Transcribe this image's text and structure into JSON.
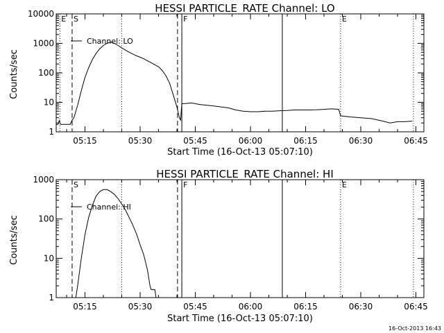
{
  "chart_data": [
    {
      "type": "line",
      "title": "HESSI PARTICLE_RATE Channel: LO",
      "xlabel": "Start Time (16-Oct-13 05:07:10)",
      "ylabel": "Counts/sec",
      "y_scale": "log",
      "ylim": [
        1,
        10000
      ],
      "xlim": [
        "05:07:10",
        "06:47:10"
      ],
      "x_ticks": [
        "05:15",
        "05:30",
        "05:45",
        "06:00",
        "06:15",
        "06:30",
        "06:45"
      ],
      "y_ticks": [
        "1",
        "10",
        "100",
        "1000",
        "10000"
      ],
      "legend": {
        "entry": "Channel: LO",
        "placement": "top-left"
      },
      "markers": [
        {
          "time": "05:08:10",
          "label": "E",
          "style": "dotted"
        },
        {
          "time": "05:11:30",
          "label": "S",
          "style": "dashed"
        },
        {
          "time": "05:25:00",
          "label": "",
          "style": "dotted"
        },
        {
          "time": "05:40:10",
          "label": "",
          "style": "dashed"
        },
        {
          "time": "05:41:20",
          "label": "F",
          "style": "solid"
        },
        {
          "time": "06:08:40",
          "label": "",
          "style": "solid"
        },
        {
          "time": "06:24:30",
          "label": "E",
          "style": "dotted"
        },
        {
          "time": "06:44:20",
          "label": "",
          "style": "dotted"
        }
      ],
      "series": [
        {
          "name": "Channel: LO",
          "points": [
            [
              "05:07:10",
              1.8
            ],
            [
              "05:07:40",
              1.8
            ],
            [
              "05:08:00",
              2.4
            ],
            [
              "05:08:20",
              1.8
            ],
            [
              "05:10:00",
              1.8
            ],
            [
              "05:11:00",
              1.8
            ],
            [
              "05:11:30",
              2.5
            ],
            [
              "05:12:00",
              3.0
            ],
            [
              "05:13:00",
              8
            ],
            [
              "05:14:00",
              25
            ],
            [
              "05:15:00",
              70
            ],
            [
              "05:16:00",
              150
            ],
            [
              "05:17:00",
              280
            ],
            [
              "05:18:00",
              450
            ],
            [
              "05:19:00",
              650
            ],
            [
              "05:20:00",
              850
            ],
            [
              "05:21:00",
              1000
            ],
            [
              "05:22:00",
              1100
            ],
            [
              "05:23:00",
              1000
            ],
            [
              "05:24:00",
              850
            ],
            [
              "05:25:00",
              700
            ],
            [
              "05:27:00",
              500
            ],
            [
              "05:29:00",
              380
            ],
            [
              "05:31:00",
              300
            ],
            [
              "05:33:00",
              220
            ],
            [
              "05:35:00",
              160
            ],
            [
              "05:36:00",
              120
            ],
            [
              "05:37:00",
              80
            ],
            [
              "05:38:00",
              45
            ],
            [
              "05:39:00",
              18
            ],
            [
              "05:40:00",
              7
            ],
            [
              "05:40:40",
              3
            ],
            [
              "05:41:00",
              2.5
            ],
            [
              "05:41:20",
              9
            ],
            [
              "05:42:00",
              9
            ],
            [
              "05:44:00",
              9.5
            ],
            [
              "05:46:00",
              8.5
            ],
            [
              "05:48:00",
              8
            ],
            [
              "05:50:00",
              7.5
            ],
            [
              "05:52:00",
              7
            ],
            [
              "05:54:00",
              6.5
            ],
            [
              "05:56:00",
              5.5
            ],
            [
              "05:58:00",
              5
            ],
            [
              "06:00:00",
              4.8
            ],
            [
              "06:02:00",
              4.8
            ],
            [
              "06:04:00",
              5
            ],
            [
              "06:06:00",
              5
            ],
            [
              "06:08:00",
              5.2
            ],
            [
              "06:10:00",
              5.3
            ],
            [
              "06:12:00",
              5.5
            ],
            [
              "06:14:00",
              5.5
            ],
            [
              "06:16:00",
              5.5
            ],
            [
              "06:18:00",
              5.6
            ],
            [
              "06:20:00",
              5.8
            ],
            [
              "06:22:00",
              6
            ],
            [
              "06:24:00",
              5.8
            ],
            [
              "06:24:30",
              3.5
            ],
            [
              "06:27:00",
              3.2
            ],
            [
              "06:30:00",
              3.0
            ],
            [
              "06:33:00",
              2.8
            ],
            [
              "06:36:00",
              2.3
            ],
            [
              "06:38:00",
              2.0
            ],
            [
              "06:40:00",
              2.2
            ],
            [
              "06:42:00",
              2.2
            ],
            [
              "06:44:00",
              2.3
            ]
          ]
        }
      ]
    },
    {
      "type": "line",
      "title": "HESSI PARTICLE_RATE Channel: HI",
      "xlabel": "Start Time (16-Oct-13 05:07:10)",
      "ylabel": "Counts/sec",
      "y_scale": "log",
      "ylim": [
        1,
        1000
      ],
      "xlim": [
        "05:07:10",
        "06:47:10"
      ],
      "x_ticks": [
        "05:15",
        "05:30",
        "05:45",
        "06:00",
        "06:15",
        "06:30",
        "06:45"
      ],
      "y_ticks": [
        "1",
        "10",
        "100",
        "1000"
      ],
      "legend": {
        "entry": "Channel: HI",
        "placement": "top-left"
      },
      "markers": [
        {
          "time": "05:11:30",
          "label": "S",
          "style": "dashed"
        },
        {
          "time": "05:25:00",
          "label": "",
          "style": "dotted"
        },
        {
          "time": "05:40:10",
          "label": "",
          "style": "dashed"
        },
        {
          "time": "05:41:20",
          "label": "F",
          "style": "solid"
        },
        {
          "time": "06:08:40",
          "label": "",
          "style": "solid"
        },
        {
          "time": "06:24:30",
          "label": "E",
          "style": "dotted"
        },
        {
          "time": "06:44:20",
          "label": "",
          "style": "dotted"
        }
      ],
      "series": [
        {
          "name": "Channel: HI",
          "points": [
            [
              "05:12:30",
              1.0
            ],
            [
              "05:13:00",
              2.0
            ],
            [
              "05:14:00",
              10
            ],
            [
              "05:15:00",
              40
            ],
            [
              "05:16:00",
              110
            ],
            [
              "05:17:00",
              220
            ],
            [
              "05:18:00",
              380
            ],
            [
              "05:19:00",
              500
            ],
            [
              "05:20:00",
              560
            ],
            [
              "05:21:00",
              560
            ],
            [
              "05:22:00",
              500
            ],
            [
              "05:23:00",
              420
            ],
            [
              "05:24:00",
              330
            ],
            [
              "05:25:00",
              240
            ],
            [
              "05:26:00",
              170
            ],
            [
              "05:27:00",
              110
            ],
            [
              "05:28:00",
              70
            ],
            [
              "05:29:00",
              42
            ],
            [
              "05:30:00",
              22
            ],
            [
              "05:31:00",
              12
            ],
            [
              "05:32:00",
              5
            ],
            [
              "05:32:40",
              2
            ],
            [
              "05:33:00",
              1.6
            ],
            [
              "05:34:00",
              1.6
            ],
            [
              "05:34:20",
              1.0
            ]
          ]
        }
      ]
    }
  ],
  "footer": {
    "timestamp": "16-Oct-2013 16:43"
  }
}
